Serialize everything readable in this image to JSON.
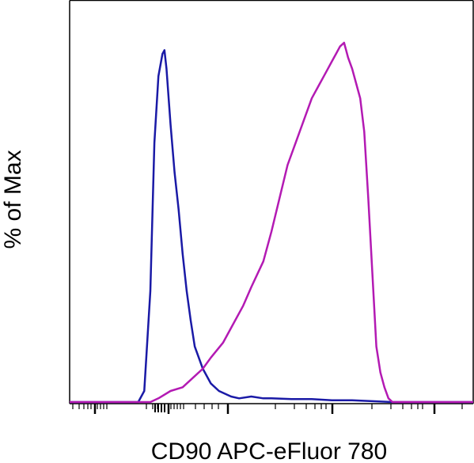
{
  "chart_data": {
    "type": "line",
    "title": "",
    "xlabel": "CD90 APC-eFluor 780",
    "ylabel": "% of Max",
    "xscale": "log (flow cytometry biexponential, unlabeled ticks)",
    "xlim": [
      0,
      100
    ],
    "ylim": [
      0,
      100
    ],
    "grid": false,
    "legend": "none",
    "series": [
      {
        "color": "#1a1aa6",
        "x": [
          0,
          17,
          18.5,
          20,
          21,
          22,
          23,
          23.5,
          24,
          25,
          26,
          27,
          28,
          29,
          30,
          31,
          33,
          35,
          37,
          40,
          42,
          45,
          48,
          50,
          55,
          60,
          65,
          70,
          80,
          90,
          100
        ],
        "y": [
          0,
          0,
          3,
          30,
          70,
          88,
          94,
          95,
          90,
          75,
          62,
          52,
          40,
          30,
          22,
          15,
          9,
          5,
          3,
          1.5,
          1,
          1.5,
          1,
          1,
          0.8,
          0.8,
          0.5,
          0.5,
          0,
          0,
          0
        ]
      },
      {
        "color": "#b31ab3",
        "x": [
          0,
          20,
          22,
          25,
          28,
          30,
          33,
          35,
          38,
          40,
          43,
          45,
          48,
          50,
          52,
          54,
          56,
          58,
          60,
          62,
          63,
          64,
          65,
          66,
          67,
          68,
          68.5,
          69,
          70,
          71,
          72,
          73,
          74,
          75,
          76,
          77,
          78,
          79,
          80,
          82,
          85,
          90,
          100
        ],
        "y": [
          0,
          0,
          1,
          3,
          4,
          6,
          9,
          12,
          16,
          20,
          26,
          31,
          38,
          46,
          55,
          64,
          70,
          76,
          82,
          86,
          88,
          90,
          92,
          94,
          96,
          97,
          95,
          93,
          90,
          86,
          82,
          73,
          55,
          35,
          15,
          8,
          4,
          1,
          0,
          0,
          0,
          0,
          0
        ]
      }
    ]
  }
}
